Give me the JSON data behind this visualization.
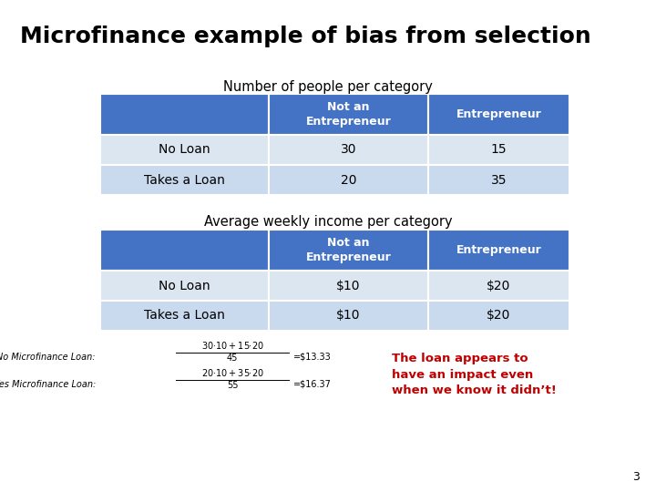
{
  "title": "Microfinance example of bias from selection",
  "table1_title": "Number of people per category",
  "table2_title": "Average weekly income per category",
  "header_bg": "#4472C4",
  "header_text": "#FFFFFF",
  "row1_bg": "#DCE6F1",
  "row2_bg": "#C9D9EE",
  "col_header1": "Not an\nEntrepreneur",
  "col_header2": "Entrepreneur",
  "row_labels": [
    "No Loan",
    "Takes a Loan"
  ],
  "table1_data": [
    [
      "30",
      "15"
    ],
    [
      "20",
      "35"
    ]
  ],
  "table2_data": [
    [
      "$10",
      "$20"
    ],
    [
      "$10",
      "$20"
    ]
  ],
  "formula_line1_left": "No Microfinance Loan: ",
  "formula_line1_num": "30·$10+15·$20",
  "formula_line1_den": "45",
  "formula_line1_res": "=$13.33",
  "formula_line2_left": "Yes Microfinance Loan: ",
  "formula_line2_num": "20·$10+35·$20",
  "formula_line2_den": "55",
  "formula_line2_res": "=$16.37",
  "callout_text": "The loan appears to\nhave an impact even\nwhen we know it didn’t!",
  "callout_color": "#C00000",
  "page_number": "3",
  "bg_color": "#FFFFFF",
  "title_fontsize": 18,
  "subtitle_fontsize": 10.5,
  "header_fontsize": 9,
  "cell_fontsize": 10,
  "formula_fontsize": 7,
  "callout_fontsize": 9.5
}
